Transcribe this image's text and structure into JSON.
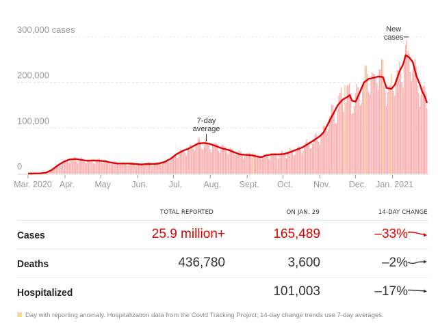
{
  "chart_data": {
    "type": "bar",
    "title": "",
    "ylabel": "cases",
    "ylim": [
      0,
      300000
    ],
    "grid": true,
    "y_ticks": [
      {
        "value": 300000,
        "label": "300,000 cases"
      },
      {
        "value": 200000,
        "label": "200,000"
      },
      {
        "value": 100000,
        "label": "100,000"
      },
      {
        "value": 0,
        "label": "0"
      }
    ],
    "x_ticks": [
      "Mar. 2020",
      "Apr.",
      "May",
      "Jun.",
      "Jul.",
      "Aug.",
      "Sept.",
      "Oct.",
      "Nov.",
      "Dec.",
      "Jan. 2021"
    ],
    "x_range_days": [
      0,
      335
    ],
    "tick_days": [
      0,
      31,
      61,
      92,
      122,
      153,
      184,
      214,
      245,
      275,
      306
    ],
    "series": [
      {
        "name": "7-day average",
        "color": "#e20000",
        "points_day_value": [
          [
            0,
            0
          ],
          [
            10,
            500
          ],
          [
            15,
            2000
          ],
          [
            20,
            8000
          ],
          [
            25,
            18000
          ],
          [
            30,
            26000
          ],
          [
            35,
            31000
          ],
          [
            40,
            32000
          ],
          [
            45,
            30000
          ],
          [
            50,
            28000
          ],
          [
            55,
            29000
          ],
          [
            60,
            28000
          ],
          [
            65,
            27000
          ],
          [
            70,
            24000
          ],
          [
            75,
            22000
          ],
          [
            80,
            22000
          ],
          [
            85,
            22000
          ],
          [
            90,
            21000
          ],
          [
            95,
            20000
          ],
          [
            100,
            21000
          ],
          [
            105,
            21000
          ],
          [
            110,
            22000
          ],
          [
            115,
            26000
          ],
          [
            120,
            33000
          ],
          [
            125,
            43000
          ],
          [
            130,
            50000
          ],
          [
            135,
            55000
          ],
          [
            140,
            62000
          ],
          [
            143,
            66000
          ],
          [
            148,
            67000
          ],
          [
            153,
            65000
          ],
          [
            158,
            60000
          ],
          [
            163,
            55000
          ],
          [
            168,
            52000
          ],
          [
            173,
            47000
          ],
          [
            178,
            42000
          ],
          [
            183,
            41000
          ],
          [
            188,
            40000
          ],
          [
            193,
            37000
          ],
          [
            196,
            36000
          ],
          [
            200,
            40000
          ],
          [
            205,
            42000
          ],
          [
            210,
            42000
          ],
          [
            215,
            43000
          ],
          [
            220,
            47000
          ],
          [
            225,
            52000
          ],
          [
            230,
            57000
          ],
          [
            235,
            65000
          ],
          [
            240,
            73000
          ],
          [
            245,
            82000
          ],
          [
            248,
            90000
          ],
          [
            252,
            110000
          ],
          [
            256,
            130000
          ],
          [
            260,
            150000
          ],
          [
            264,
            162000
          ],
          [
            268,
            168000
          ],
          [
            270,
            172000
          ],
          [
            272,
            160000
          ],
          [
            275,
            158000
          ],
          [
            278,
            175000
          ],
          [
            282,
            200000
          ],
          [
            286,
            208000
          ],
          [
            290,
            210000
          ],
          [
            294,
            213000
          ],
          [
            298,
            212000
          ],
          [
            301,
            188000
          ],
          [
            305,
            186000
          ],
          [
            308,
            195000
          ],
          [
            312,
            225000
          ],
          [
            315,
            240000
          ],
          [
            317,
            260000
          ],
          [
            320,
            255000
          ],
          [
            323,
            245000
          ],
          [
            326,
            215000
          ],
          [
            329,
            195000
          ],
          [
            331,
            180000
          ],
          [
            333,
            170000
          ],
          [
            335,
            155000
          ]
        ]
      },
      {
        "name": "New cases",
        "color": "#f9b4b4"
      }
    ],
    "anomaly_days": [
      189,
      266,
      283,
      298,
      305
    ],
    "anomaly_color": "#fbd89a",
    "annotations": [
      {
        "text": [
          "7-day",
          "average"
        ],
        "day": 148
      },
      {
        "text": [
          "New",
          "cases"
        ],
        "day": 315
      }
    ]
  },
  "table": {
    "headers": {
      "total": "TOTAL REPORTED",
      "day": "ON JAN. 29",
      "change": "14-DAY CHANGE"
    },
    "rows": [
      {
        "label": "Cases",
        "total": "25.9 million+",
        "day": "165,489",
        "change": "–33%",
        "highlight": true,
        "trend": "down"
      },
      {
        "label": "Deaths",
        "total": "436,780",
        "day": "3,600",
        "change": "–2%",
        "highlight": false,
        "trend": "flat-wave"
      },
      {
        "label": "Hospitalized",
        "total": "",
        "day": "101,003",
        "change": "–17%",
        "highlight": false,
        "trend": "flat-down"
      }
    ]
  },
  "footnote": "Day with reporting anomaly. Hospitalization data from the Covid Tracking Project; 14-day change trends use 7-day averages.",
  "colors": {
    "accent": "#e20000",
    "bar": "#f9b4b4",
    "anomaly": "#fbd89a",
    "grid": "#dddddd",
    "text": "#333333"
  }
}
